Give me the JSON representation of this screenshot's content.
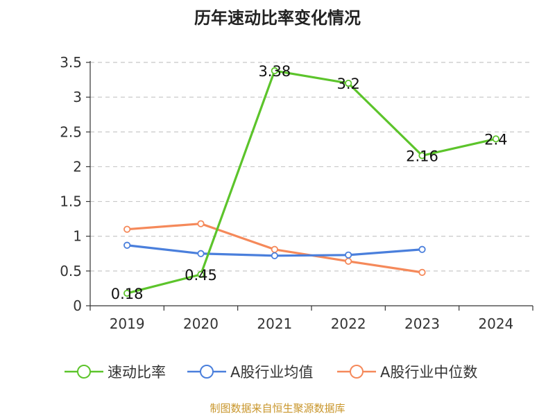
{
  "chart_data": {
    "type": "line",
    "title": "历年速动比率变化情况",
    "categories": [
      "2019",
      "2020",
      "2021",
      "2022",
      "2023",
      "2024"
    ],
    "ylim": [
      0,
      3.5
    ],
    "yticks": [
      "0",
      "0.5",
      "1",
      "1.5",
      "2",
      "2.5",
      "3",
      "3.5"
    ],
    "grid": true,
    "legend_position": "bottom",
    "series": [
      {
        "name": "速动比率",
        "color": "#5cc42b",
        "values": [
          0.18,
          0.45,
          3.38,
          3.2,
          2.16,
          2.4
        ],
        "labels": [
          "0.18",
          "0.45",
          "3.38",
          "3.2",
          "2.16",
          "2.4"
        ]
      },
      {
        "name": "A股行业均值",
        "color": "#4a7fdc",
        "values": [
          0.87,
          0.75,
          0.72,
          0.73,
          0.81,
          null
        ]
      },
      {
        "name": "A股行业中位数",
        "color": "#f5895a",
        "values": [
          1.1,
          1.18,
          0.81,
          0.64,
          0.48,
          null
        ]
      }
    ]
  },
  "source": {
    "text": "制图数据来自恒生聚源数据库",
    "color": "#c8952a"
  }
}
